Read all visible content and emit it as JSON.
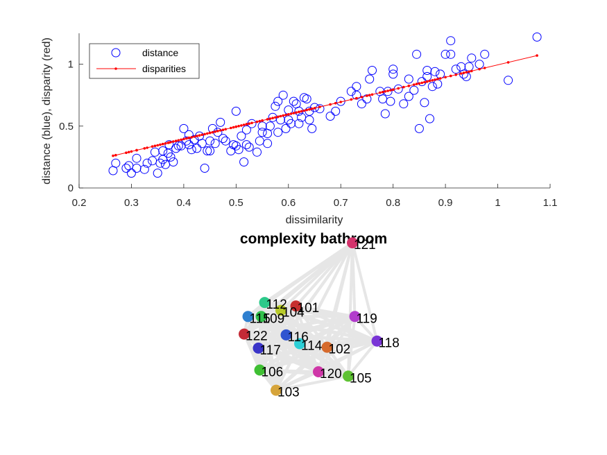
{
  "chart_data": [
    {
      "type": "scatter",
      "xlabel": "dissimilarity",
      "ylabel": "distance (blue), disparity (red)",
      "xlim": [
        0.2,
        1.1
      ],
      "ylim": [
        0,
        1.25
      ],
      "xticks": [
        "0.2",
        "0.3",
        "0.4",
        "0.5",
        "0.6",
        "0.7",
        "0.8",
        "0.9",
        "1",
        "1.1"
      ],
      "yticks": [
        "0",
        "0.5",
        "1"
      ],
      "legend": {
        "placement": "top-left",
        "entries": [
          "distance",
          "disparities"
        ]
      },
      "series": [
        {
          "name": "distance",
          "color": "#0000ff",
          "marker": "circle",
          "points": [
            [
              0.265,
              0.14
            ],
            [
              0.27,
              0.2
            ],
            [
              0.29,
              0.16
            ],
            [
              0.295,
              0.18
            ],
            [
              0.3,
              0.12
            ],
            [
              0.31,
              0.16
            ],
            [
              0.31,
              0.24
            ],
            [
              0.325,
              0.15
            ],
            [
              0.34,
              0.22
            ],
            [
              0.345,
              0.29
            ],
            [
              0.35,
              0.12
            ],
            [
              0.355,
              0.2
            ],
            [
              0.36,
              0.23
            ],
            [
              0.365,
              0.19
            ],
            [
              0.37,
              0.28
            ],
            [
              0.372,
              0.35
            ],
            [
              0.375,
              0.25
            ],
            [
              0.38,
              0.21
            ],
            [
              0.385,
              0.32
            ],
            [
              0.39,
              0.34
            ],
            [
              0.395,
              0.34
            ],
            [
              0.4,
              0.48
            ],
            [
              0.405,
              0.38
            ],
            [
              0.41,
              0.35
            ],
            [
              0.415,
              0.31
            ],
            [
              0.42,
              0.39
            ],
            [
              0.425,
              0.32
            ],
            [
              0.43,
              0.42
            ],
            [
              0.435,
              0.36
            ],
            [
              0.44,
              0.16
            ],
            [
              0.445,
              0.3
            ],
            [
              0.45,
              0.38
            ],
            [
              0.455,
              0.48
            ],
            [
              0.46,
              0.36
            ],
            [
              0.465,
              0.45
            ],
            [
              0.47,
              0.53
            ],
            [
              0.475,
              0.4
            ],
            [
              0.48,
              0.38
            ],
            [
              0.49,
              0.3
            ],
            [
              0.495,
              0.35
            ],
            [
              0.5,
              0.62
            ],
            [
              0.505,
              0.31
            ],
            [
              0.51,
              0.42
            ],
            [
              0.515,
              0.21
            ],
            [
              0.52,
              0.35
            ],
            [
              0.525,
              0.33
            ],
            [
              0.53,
              0.52
            ],
            [
              0.54,
              0.29
            ],
            [
              0.545,
              0.38
            ],
            [
              0.55,
              0.45
            ],
            [
              0.56,
              0.44
            ],
            [
              0.565,
              0.5
            ],
            [
              0.57,
              0.57
            ],
            [
              0.575,
              0.66
            ],
            [
              0.58,
              0.45
            ],
            [
              0.585,
              0.55
            ],
            [
              0.59,
              0.75
            ],
            [
              0.595,
              0.48
            ],
            [
              0.6,
              0.55
            ],
            [
              0.605,
              0.52
            ],
            [
              0.61,
              0.7
            ],
            [
              0.615,
              0.68
            ],
            [
              0.62,
              0.62
            ],
            [
              0.625,
              0.57
            ],
            [
              0.63,
              0.73
            ],
            [
              0.635,
              0.72
            ],
            [
              0.64,
              0.55
            ],
            [
              0.645,
              0.48
            ],
            [
              0.65,
              0.65
            ],
            [
              0.66,
              0.64
            ],
            [
              0.68,
              0.58
            ],
            [
              0.69,
              0.62
            ],
            [
              0.72,
              0.78
            ],
            [
              0.73,
              0.82
            ],
            [
              0.74,
              0.68
            ],
            [
              0.75,
              0.72
            ],
            [
              0.755,
              0.88
            ],
            [
              0.76,
              0.95
            ],
            [
              0.775,
              0.78
            ],
            [
              0.78,
              0.72
            ],
            [
              0.785,
              0.6
            ],
            [
              0.79,
              0.78
            ],
            [
              0.795,
              0.7
            ],
            [
              0.8,
              0.92
            ],
            [
              0.81,
              0.8
            ],
            [
              0.82,
              0.68
            ],
            [
              0.83,
              0.88
            ],
            [
              0.84,
              0.79
            ],
            [
              0.845,
              1.08
            ],
            [
              0.85,
              0.48
            ],
            [
              0.855,
              0.86
            ],
            [
              0.86,
              0.69
            ],
            [
              0.865,
              0.9
            ],
            [
              0.87,
              0.56
            ],
            [
              0.875,
              0.82
            ],
            [
              0.88,
              0.94
            ],
            [
              0.885,
              0.84
            ],
            [
              0.89,
              0.92
            ],
            [
              0.9,
              1.08
            ],
            [
              0.91,
              1.19
            ],
            [
              0.92,
              0.96
            ],
            [
              0.93,
              0.98
            ],
            [
              0.935,
              0.92
            ],
            [
              0.945,
              0.98
            ],
            [
              0.95,
              1.05
            ],
            [
              0.965,
              1.0
            ],
            [
              0.975,
              1.08
            ],
            [
              1.02,
              0.87
            ],
            [
              1.075,
              1.22
            ],
            [
              0.6,
              0.63
            ],
            [
              0.58,
              0.7
            ],
            [
              0.55,
              0.5
            ],
            [
              0.52,
              0.47
            ],
            [
              0.5,
              0.34
            ],
            [
              0.45,
              0.3
            ],
            [
              0.41,
              0.43
            ],
            [
              0.62,
              0.52
            ],
            [
              0.7,
              0.7
            ],
            [
              0.865,
              0.95
            ],
            [
              0.91,
              1.08
            ],
            [
              0.94,
              0.9
            ],
            [
              0.8,
              0.96
            ],
            [
              0.73,
              0.75
            ],
            [
              0.83,
              0.74
            ],
            [
              0.64,
              0.62
            ],
            [
              0.56,
              0.36
            ],
            [
              0.36,
              0.3
            ],
            [
              0.33,
              0.2
            ]
          ]
        },
        {
          "name": "disparities",
          "color": "#ff0000",
          "marker": "dot-line",
          "points": [
            [
              0.265,
              0.26
            ],
            [
              1.075,
              1.07
            ]
          ]
        }
      ]
    },
    {
      "type": "network",
      "title": "complexity bathroom",
      "edge_color": "#e6e6e6",
      "nodes": [
        {
          "label": "121",
          "x": 0.712,
          "y": 0.98,
          "color": "#d4336c"
        },
        {
          "label": "112",
          "x": 0.206,
          "y": 0.64,
          "color": "#2cc98a"
        },
        {
          "label": "101",
          "x": 0.386,
          "y": 0.62,
          "color": "#c62f2f"
        },
        {
          "label": "104",
          "x": 0.3,
          "y": 0.595,
          "color": "#b8cb2a"
        },
        {
          "label": "115",
          "x": 0.11,
          "y": 0.56,
          "color": "#2f80d0"
        },
        {
          "label": "109",
          "x": 0.186,
          "y": 0.56,
          "color": "#33c24c"
        },
        {
          "label": "119",
          "x": 0.726,
          "y": 0.56,
          "color": "#b23ccc"
        },
        {
          "label": "122",
          "x": 0.088,
          "y": 0.46,
          "color": "#c42a36"
        },
        {
          "label": "116",
          "x": 0.33,
          "y": 0.455,
          "color": "#2f54d0"
        },
        {
          "label": "118",
          "x": 0.854,
          "y": 0.42,
          "color": "#7a35d6"
        },
        {
          "label": "114",
          "x": 0.408,
          "y": 0.405,
          "color": "#2ccfd6"
        },
        {
          "label": "102",
          "x": 0.566,
          "y": 0.385,
          "color": "#d66a2c"
        },
        {
          "label": "117",
          "x": 0.17,
          "y": 0.38,
          "color": "#3a34c8"
        },
        {
          "label": "106",
          "x": 0.178,
          "y": 0.255,
          "color": "#3fbf33"
        },
        {
          "label": "120",
          "x": 0.516,
          "y": 0.245,
          "color": "#cf37a8"
        },
        {
          "label": "105",
          "x": 0.688,
          "y": 0.22,
          "color": "#5ec233"
        },
        {
          "label": "103",
          "x": 0.272,
          "y": 0.14,
          "color": "#d6a43a"
        }
      ]
    }
  ]
}
